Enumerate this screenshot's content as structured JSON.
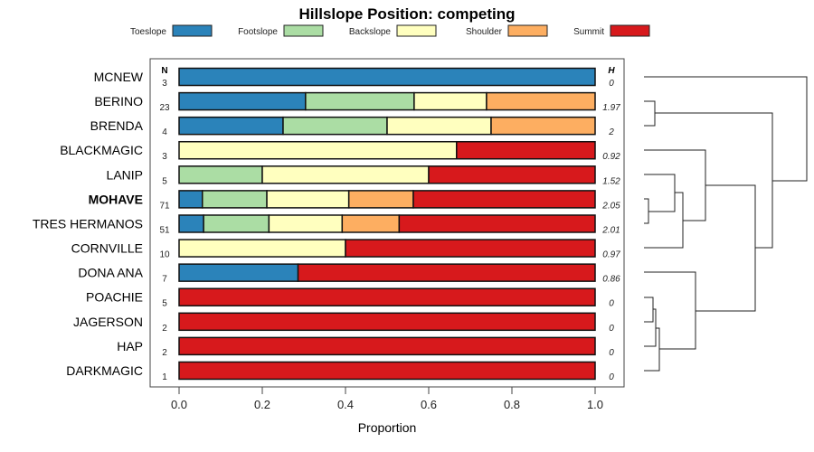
{
  "chart_data": {
    "type": "bar",
    "stacked": true,
    "orientation": "horizontal",
    "title": "Hillslope Position: competing",
    "xlabel": "Proportion",
    "xlim": [
      0,
      1
    ],
    "xticks": [
      "0.0",
      "0.2",
      "0.4",
      "0.6",
      "0.8",
      "1.0"
    ],
    "n_header": "N",
    "h_header": "H",
    "legend": {
      "placement": "top",
      "entries": [
        "Toeslope",
        "Footslope",
        "Backslope",
        "Shoulder",
        "Summit"
      ]
    },
    "colors": [
      "#2b83ba",
      "#abdda4",
      "#ffffbf",
      "#fdae61",
      "#d7191c"
    ],
    "rows": [
      {
        "label": "MCNEW",
        "n": "3",
        "h": "0",
        "bold": false,
        "values": [
          1,
          0,
          0,
          0,
          0
        ]
      },
      {
        "label": "BERINO",
        "n": "23",
        "h": "1.97",
        "bold": false,
        "values": [
          0.304,
          0.261,
          0.174,
          0.261,
          0
        ]
      },
      {
        "label": "BRENDA",
        "n": "4",
        "h": "2",
        "bold": false,
        "values": [
          0.25,
          0.25,
          0.25,
          0.25,
          0
        ]
      },
      {
        "label": "BLACKMAGIC",
        "n": "3",
        "h": "0.92",
        "bold": false,
        "values": [
          0,
          0,
          0.667,
          0,
          0.333
        ]
      },
      {
        "label": "LANIP",
        "n": "5",
        "h": "1.52",
        "bold": false,
        "values": [
          0,
          0.2,
          0.4,
          0,
          0.4
        ]
      },
      {
        "label": "MOHAVE",
        "n": "71",
        "h": "2.05",
        "bold": true,
        "values": [
          0.056,
          0.155,
          0.197,
          0.155,
          0.437
        ]
      },
      {
        "label": "TRES HERMANOS",
        "n": "51",
        "h": "2.01",
        "bold": false,
        "values": [
          0.059,
          0.157,
          0.176,
          0.137,
          0.471
        ]
      },
      {
        "label": "CORNVILLE",
        "n": "10",
        "h": "0.97",
        "bold": false,
        "values": [
          0,
          0,
          0.4,
          0,
          0.6
        ]
      },
      {
        "label": "DONA ANA",
        "n": "7",
        "h": "0.86",
        "bold": false,
        "values": [
          0.286,
          0,
          0,
          0,
          0.714
        ]
      },
      {
        "label": "POACHIE",
        "n": "5",
        "h": "0",
        "bold": false,
        "values": [
          0,
          0,
          0,
          0,
          1
        ]
      },
      {
        "label": "JAGERSON",
        "n": "2",
        "h": "0",
        "bold": false,
        "values": [
          0,
          0,
          0,
          0,
          1
        ]
      },
      {
        "label": "HAP",
        "n": "2",
        "h": "0",
        "bold": false,
        "values": [
          0,
          0,
          0,
          0,
          1
        ]
      },
      {
        "label": "DARKMAGIC",
        "n": "1",
        "h": "0",
        "bold": false,
        "values": [
          0,
          0,
          0,
          0,
          1
        ]
      }
    ]
  }
}
